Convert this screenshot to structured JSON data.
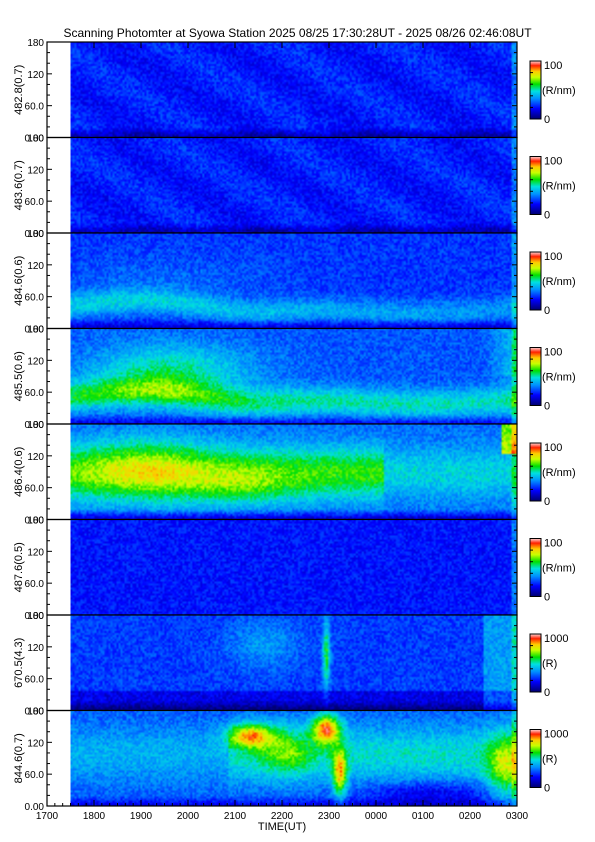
{
  "title": "Scanning Photomter at Syowa Station  2025 08/25 17:30:28UT - 2025 08/26 02:46:08UT",
  "chart_data": {
    "type": "heatmap",
    "xlabel": "TIME(UT)",
    "x_ticks": [
      "1700",
      "1800",
      "1900",
      "2000",
      "2100",
      "2200",
      "2300",
      "0000",
      "0100",
      "0200",
      "0300"
    ],
    "y_ticks": [
      "0.00",
      "60.0",
      "120",
      "180"
    ],
    "ylim": [
      0,
      180
    ],
    "data_start_hour": 17.5,
    "panels": [
      {
        "ylabel": "482.8(0.7)",
        "colorbar_max": "100",
        "colorbar_min": "0",
        "unit": "(R/nm)"
      },
      {
        "ylabel": "483.6(0.7)",
        "colorbar_max": "100",
        "colorbar_min": "0",
        "unit": "(R/nm)"
      },
      {
        "ylabel": "484.6(0.6)",
        "colorbar_max": "100",
        "colorbar_min": "0",
        "unit": "(R/nm)"
      },
      {
        "ylabel": "485.5(0.6)",
        "colorbar_max": "100",
        "colorbar_min": "0",
        "unit": "(R/nm)"
      },
      {
        "ylabel": "486.4(0.6)",
        "colorbar_max": "100",
        "colorbar_min": "0",
        "unit": "(R/nm)"
      },
      {
        "ylabel": "487.6(0.5)",
        "colorbar_max": "100",
        "colorbar_min": "0",
        "unit": "(R/nm)"
      },
      {
        "ylabel": "670.5(4.3)",
        "colorbar_max": "1000",
        "colorbar_min": "0",
        "unit": "(R)"
      },
      {
        "ylabel": "844.6(0.7)",
        "colorbar_max": "1000",
        "colorbar_min": "0",
        "unit": "(R)"
      }
    ],
    "colors": {
      "colormap": [
        "#000080",
        "#0000ff",
        "#0080ff",
        "#00ffff",
        "#00ff00",
        "#ffff00",
        "#ff8000",
        "#ff0000",
        "#ffffff"
      ]
    }
  }
}
